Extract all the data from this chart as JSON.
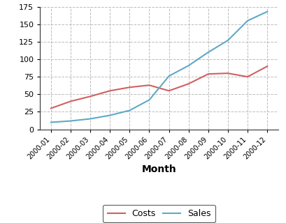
{
  "months": [
    "2000-01",
    "2000-02",
    "2000-03",
    "2000-04",
    "2000-05",
    "2000-06",
    "2000-07",
    "2000-08",
    "2000-09",
    "2000-10",
    "2000-11",
    "2000-12"
  ],
  "costs": [
    30,
    40,
    47,
    55,
    60,
    63,
    55,
    65,
    79,
    80,
    75,
    90
  ],
  "sales": [
    10,
    12,
    15,
    20,
    27,
    42,
    76,
    91,
    110,
    127,
    155,
    168
  ],
  "costs_color": "#d06060",
  "sales_color": "#60a8c8",
  "xlabel": "Month",
  "ylim": [
    0,
    175
  ],
  "yticks": [
    0,
    25,
    50,
    75,
    100,
    125,
    150,
    175
  ],
  "legend_labels": [
    "Costs",
    "Sales"
  ],
  "background_color": "#ffffff",
  "grid_color": "#aaaaaa"
}
